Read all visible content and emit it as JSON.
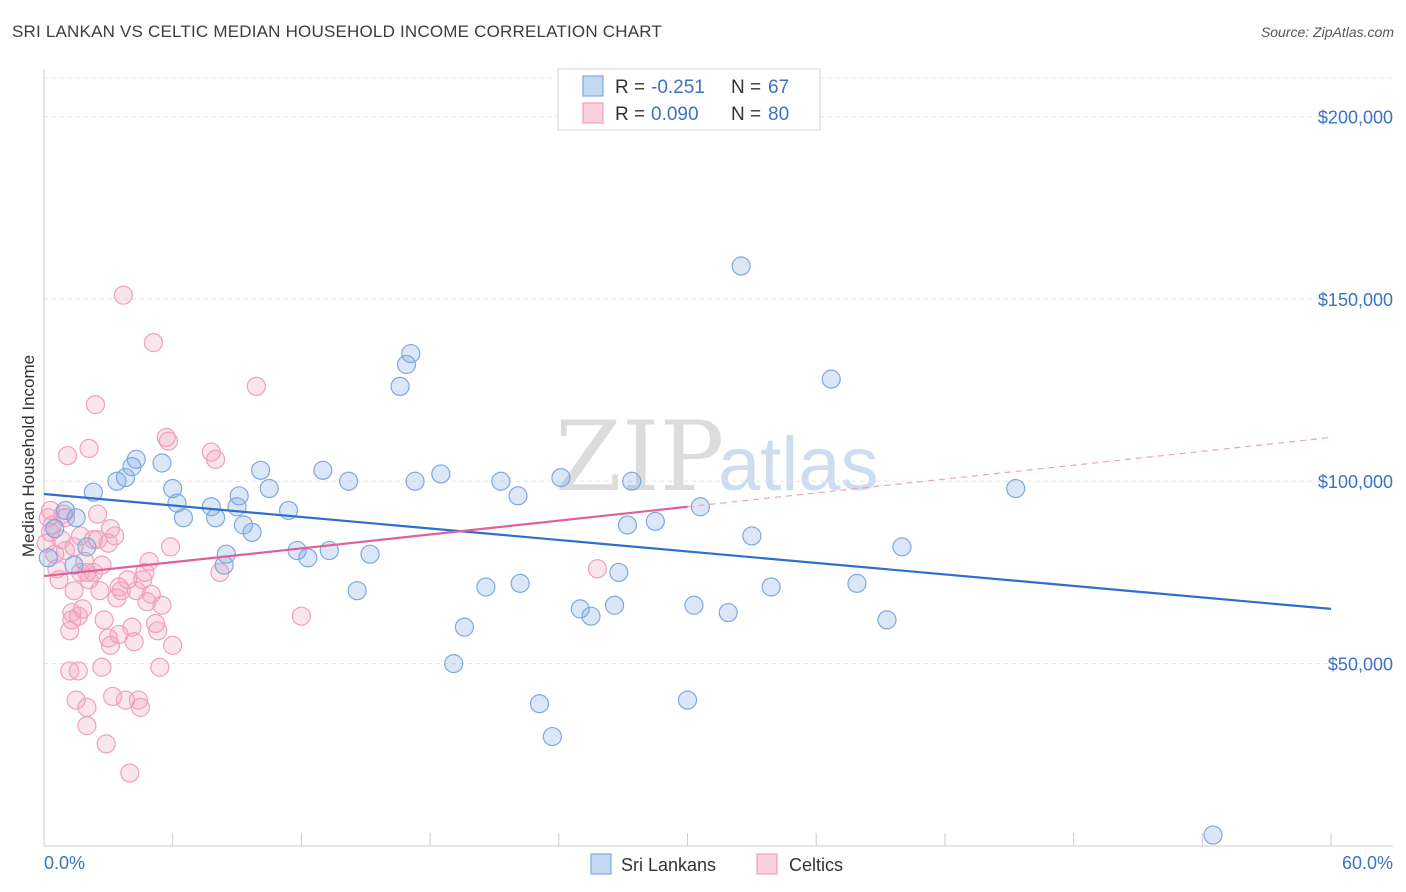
{
  "header": {
    "title": "SRI LANKAN VS CELTIC MEDIAN HOUSEHOLD INCOME CORRELATION CHART",
    "source": "Source: ZipAtlas.com"
  },
  "watermark": {
    "zip": "ZIP",
    "atlas": "atlas"
  },
  "legend": {
    "r_label": "R =",
    "n_label": "N =",
    "series": [
      {
        "r": "-0.251",
        "n": "67"
      },
      {
        "r": "0.090",
        "n": "80"
      }
    ]
  },
  "bottom_legend": [
    "Sri Lankans",
    "Celtics"
  ],
  "chart_data": {
    "type": "scatter",
    "title": "SRI LANKAN VS CELTIC MEDIAN HOUSEHOLD INCOME CORRELATION CHART",
    "ylabel": "Median Household Income",
    "xlabel": "",
    "xlim": [
      0,
      60
    ],
    "ylim": [
      0,
      210000
    ],
    "x_tick_labels": [
      "0.0%",
      "60.0%"
    ],
    "y_ticks": [
      50000,
      100000,
      150000,
      200000
    ],
    "y_tick_labels": [
      "$50,000",
      "$100,000",
      "$150,000",
      "$200,000"
    ],
    "grid": "horizontal dashed",
    "legend_position": "top-center",
    "colors": {
      "sri_lankans": "#7fa8e0",
      "sri_lankans_line": "#2f6fcc",
      "celtics": "#f0a0bc",
      "celtics_line": "#e0609a"
    },
    "series": [
      {
        "name": "Sri Lankans",
        "trend": {
          "x": [
            0,
            60
          ],
          "y": [
            96500,
            65000
          ]
        },
        "x": [
          0.2,
          0.5,
          1.0,
          1.4,
          1.5,
          2.0,
          2.3,
          3.4,
          3.8,
          4.1,
          4.3,
          5.5,
          6.0,
          6.2,
          6.5,
          7.8,
          8.0,
          8.5,
          8.4,
          9.0,
          9.1,
          9.3,
          9.7,
          10.1,
          10.5,
          11.4,
          11.8,
          12.3,
          13.0,
          13.3,
          14.2,
          14.6,
          15.2,
          16.6,
          16.9,
          17.1,
          17.3,
          18.5,
          19.1,
          19.6,
          20.6,
          21.3,
          22.1,
          22.2,
          23.1,
          23.7,
          24.1,
          25.0,
          25.5,
          26.6,
          26.8,
          27.2,
          27.4,
          28.5,
          30.0,
          30.3,
          30.6,
          31.9,
          32.5,
          33.0,
          33.9,
          36.7,
          37.9,
          39.3,
          40.0,
          45.3,
          54.5
        ],
        "y": [
          79000,
          87000,
          92000,
          77000,
          90000,
          82000,
          97000,
          100000,
          101000,
          104000,
          106000,
          105000,
          98000,
          94000,
          90000,
          93000,
          90000,
          80000,
          77000,
          93000,
          96000,
          88000,
          86000,
          103000,
          98000,
          92000,
          81000,
          79000,
          103000,
          81000,
          100000,
          70000,
          80000,
          126000,
          132000,
          135000,
          100000,
          102000,
          50000,
          60000,
          71000,
          100000,
          96000,
          72000,
          39000,
          30000,
          101000,
          65000,
          63000,
          66000,
          75000,
          88000,
          100000,
          89000,
          40000,
          66000,
          93000,
          64000,
          159000,
          85000,
          71000,
          128000,
          72000,
          62000,
          82000,
          98000,
          3000
        ]
      },
      {
        "name": "Celtics",
        "trend": {
          "x": [
            0,
            30
          ],
          "y": [
            74000,
            93000
          ],
          "dashed_extension": {
            "x": [
              30,
              60
            ],
            "y": [
              93000,
              112000
            ]
          }
        },
        "x": [
          0.1,
          0.2,
          0.3,
          0.3,
          0.4,
          0.5,
          0.6,
          0.7,
          0.8,
          0.9,
          1.0,
          1.0,
          1.1,
          1.2,
          1.2,
          1.3,
          1.3,
          1.4,
          1.4,
          1.5,
          1.6,
          1.6,
          1.7,
          1.7,
          1.8,
          1.9,
          2.0,
          2.0,
          2.0,
          2.1,
          2.1,
          2.3,
          2.3,
          2.4,
          2.5,
          2.5,
          2.6,
          2.7,
          2.7,
          2.8,
          2.9,
          3.0,
          3.0,
          3.1,
          3.1,
          3.2,
          3.3,
          3.4,
          3.5,
          3.5,
          3.6,
          3.7,
          3.8,
          3.9,
          4.0,
          4.1,
          4.2,
          4.3,
          4.4,
          4.5,
          4.6,
          4.7,
          4.8,
          4.9,
          5.0,
          5.1,
          5.2,
          5.3,
          5.4,
          5.5,
          5.7,
          5.8,
          5.9,
          6.0,
          7.8,
          8.0,
          8.2,
          9.9,
          12.0,
          25.8
        ],
        "y": [
          83000,
          90000,
          92000,
          86000,
          88000,
          80000,
          76000,
          73000,
          84000,
          91000,
          81000,
          90000,
          107000,
          48000,
          59000,
          62000,
          64000,
          82000,
          70000,
          40000,
          48000,
          63000,
          85000,
          75000,
          65000,
          78000,
          38000,
          33000,
          75000,
          73000,
          109000,
          84000,
          75000,
          121000,
          91000,
          84000,
          70000,
          49000,
          77000,
          62000,
          28000,
          57000,
          83000,
          55000,
          87000,
          41000,
          85000,
          68000,
          58000,
          71000,
          70000,
          151000,
          40000,
          73000,
          20000,
          60000,
          56000,
          70000,
          40000,
          38000,
          73000,
          75000,
          67000,
          78000,
          69000,
          138000,
          61000,
          59000,
          49000,
          66000,
          112000,
          111000,
          82000,
          55000,
          108000,
          106000,
          75000,
          126000,
          63000,
          76000
        ]
      }
    ]
  }
}
